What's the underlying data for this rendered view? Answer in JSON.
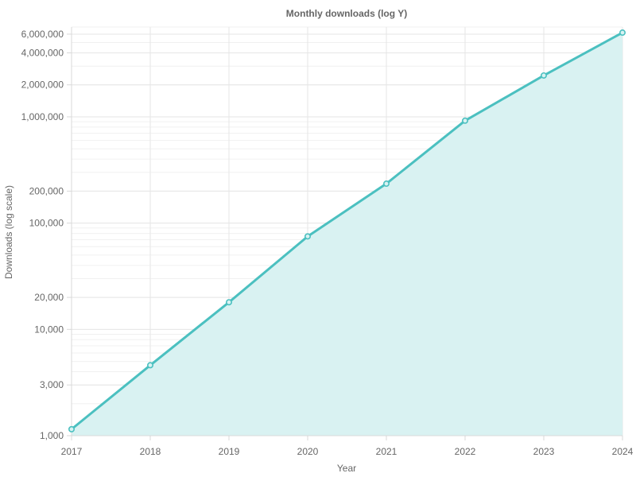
{
  "chart_data": {
    "type": "area",
    "title": "Monthly downloads (log Y)",
    "xlabel": "Year",
    "ylabel": "Downloads (log scale)",
    "x": [
      "2017",
      "2018",
      "2019",
      "2020",
      "2021",
      "2022",
      "2023",
      "2024"
    ],
    "series": [
      {
        "values": [
          1150,
          4600,
          18000,
          75000,
          235000,
          920000,
          2450000,
          6200000
        ]
      }
    ],
    "y_scale": "log",
    "ylim": [
      1000,
      7000000
    ],
    "y_ticks": [
      1000,
      3000,
      10000,
      20000,
      100000,
      200000,
      1000000,
      2000000,
      4000000,
      6000000
    ],
    "y_tick_labels": [
      "1,000",
      "3,000",
      "10,000",
      "20,000",
      "100,000",
      "200,000",
      "1,000,000",
      "2,000,000",
      "4,000,000",
      "6,000,000"
    ],
    "grid": true,
    "legend": "none",
    "colors": {
      "line": "#4bc0c0",
      "fill": "#d9f2f2"
    }
  }
}
